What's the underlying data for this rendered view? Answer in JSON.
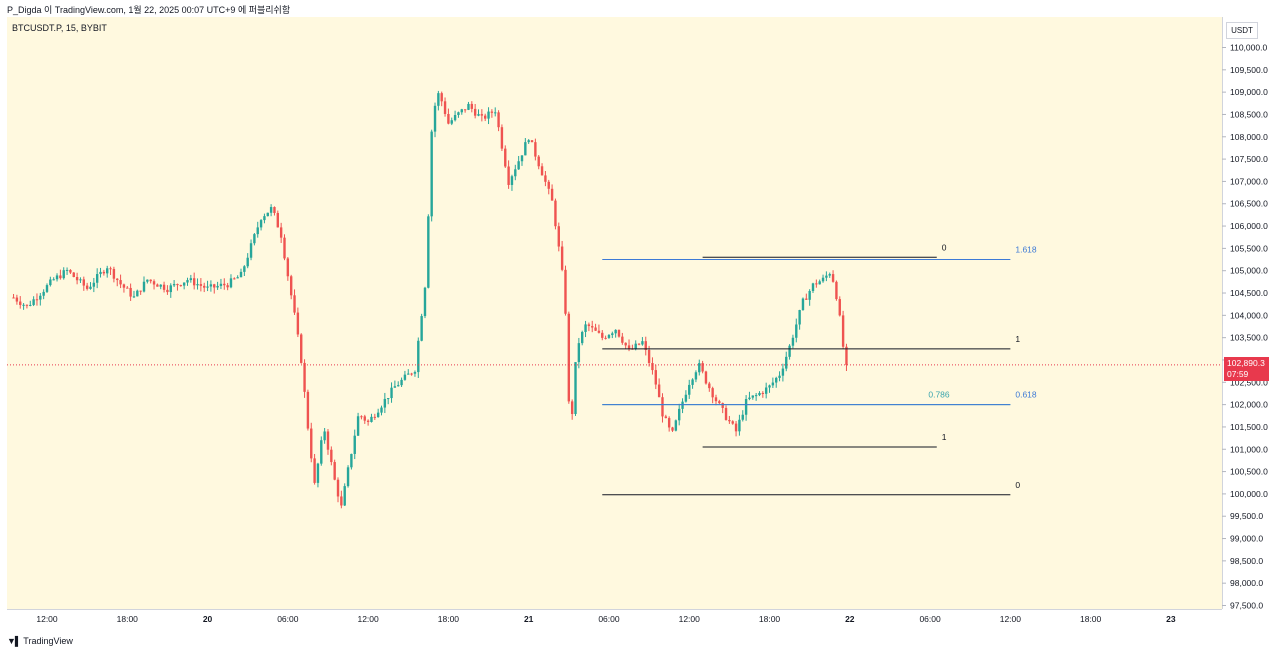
{
  "header": {
    "caption": "P_Digda 이 TradingView.com, 1월 22, 2025 00:07 UTC+9 에 퍼블리쉬함"
  },
  "legend": {
    "symbol": "BTCUSDT.P, 15, BYBIT"
  },
  "axis": {
    "unit": "USDT"
  },
  "footer": {
    "brand": "TradingView",
    "logo": "tradingview-logo-icon"
  },
  "price_tag": {
    "price": "102,890.3",
    "countdown": "07:59"
  },
  "colors": {
    "up": "#26a69a",
    "down": "#ef5350",
    "background": "#fff9df",
    "fib_blue": "#3d7ad6",
    "fib_teal": "#3aa5ad",
    "fib_black": "#131722",
    "last_price": "#e8394d"
  },
  "chart_data": {
    "type": "candlestick",
    "y_axis": {
      "min": 97500,
      "max": 110000,
      "ticks": [
        "110,000.0",
        "109,500.0",
        "109,000.0",
        "108,500.0",
        "108,000.0",
        "107,500.0",
        "107,000.0",
        "106,500.0",
        "106,000.0",
        "105,500.0",
        "105,000.0",
        "104,500.0",
        "104,000.0",
        "103,500.0",
        "103,000.0",
        "102,500.0",
        "102,000.0",
        "101,500.0",
        "101,000.0",
        "100,500.0",
        "100,000.0",
        "99,500.0",
        "99,000.0",
        "98,500.0",
        "98,000.0",
        "97,500.0"
      ]
    },
    "x_axis": {
      "ticks": [
        {
          "label": "12:00",
          "hours": 12,
          "bold": false
        },
        {
          "label": "18:00",
          "hours": 18,
          "bold": false
        },
        {
          "label": "20",
          "hours": 24,
          "bold": true
        },
        {
          "label": "06:00",
          "hours": 30,
          "bold": false
        },
        {
          "label": "12:00",
          "hours": 36,
          "bold": false
        },
        {
          "label": "18:00",
          "hours": 42,
          "bold": false
        },
        {
          "label": "21",
          "hours": 48,
          "bold": true
        },
        {
          "label": "06:00",
          "hours": 54,
          "bold": false
        },
        {
          "label": "12:00",
          "hours": 60,
          "bold": false
        },
        {
          "label": "18:00",
          "hours": 66,
          "bold": false
        },
        {
          "label": "22",
          "hours": 72,
          "bold": true
        },
        {
          "label": "06:00",
          "hours": 78,
          "bold": false
        },
        {
          "label": "12:00",
          "hours": 84,
          "bold": false
        },
        {
          "label": "18:00",
          "hours": 90,
          "bold": false
        },
        {
          "label": "23",
          "hours": 96,
          "bold": true
        }
      ]
    },
    "last_price": 102890.3,
    "price_waypoints": [
      [
        9.5,
        104400
      ],
      [
        10.5,
        104200
      ],
      [
        11.5,
        104500
      ],
      [
        12.5,
        104800
      ],
      [
        13.5,
        105000
      ],
      [
        15,
        104600
      ],
      [
        16.5,
        105100
      ],
      [
        17.5,
        104700
      ],
      [
        18.5,
        104400
      ],
      [
        19.5,
        104800
      ],
      [
        21,
        104600
      ],
      [
        22.5,
        104800
      ],
      [
        24,
        104600
      ],
      [
        25.5,
        104700
      ],
      [
        26.5,
        104900
      ],
      [
        28,
        106200
      ],
      [
        28.8,
        106400
      ],
      [
        29.5,
        105800
      ],
      [
        30.5,
        104000
      ],
      [
        31,
        103000
      ],
      [
        31.5,
        101500
      ],
      [
        32,
        100200
      ],
      [
        32.7,
        101500
      ],
      [
        33.5,
        100300
      ],
      [
        34,
        99700
      ],
      [
        34.6,
        100700
      ],
      [
        35.3,
        101800
      ],
      [
        36,
        101600
      ],
      [
        37,
        102000
      ],
      [
        38,
        102400
      ],
      [
        39.5,
        102800
      ],
      [
        40.3,
        104800
      ],
      [
        40.8,
        108500
      ],
      [
        41.3,
        109000
      ],
      [
        42,
        108300
      ],
      [
        42.7,
        108500
      ],
      [
        43.5,
        108700
      ],
      [
        44.5,
        108400
      ],
      [
        45.5,
        108600
      ],
      [
        46.5,
        107000
      ],
      [
        47.3,
        107500
      ],
      [
        48,
        108000
      ],
      [
        49,
        107200
      ],
      [
        49.8,
        106500
      ],
      [
        50.7,
        104500
      ],
      [
        51.1,
        101200
      ],
      [
        51.6,
        103300
      ],
      [
        52.3,
        103800
      ],
      [
        53.5,
        103500
      ],
      [
        54.5,
        103700
      ],
      [
        55.5,
        103200
      ],
      [
        56.5,
        103400
      ],
      [
        57.4,
        102600
      ],
      [
        58,
        101800
      ],
      [
        58.7,
        101300
      ],
      [
        59.3,
        101900
      ],
      [
        60,
        102500
      ],
      [
        60.7,
        102900
      ],
      [
        61.3,
        102500
      ],
      [
        62,
        102100
      ],
      [
        62.8,
        101700
      ],
      [
        63.5,
        101400
      ],
      [
        64.3,
        102100
      ],
      [
        65,
        102200
      ],
      [
        66,
        102400
      ],
      [
        66.8,
        102700
      ],
      [
        67.5,
        103300
      ],
      [
        68.5,
        104300
      ],
      [
        69.3,
        104700
      ],
      [
        70,
        104800
      ],
      [
        70.6,
        105000
      ],
      [
        71.1,
        104300
      ],
      [
        71.5,
        103300
      ],
      [
        71.9,
        102890
      ]
    ],
    "fib_levels": [
      {
        "label": "0",
        "price": 105300,
        "start": 61,
        "end": 78.5,
        "color": "fib_black",
        "label_pos": "right"
      },
      {
        "label": "1.618",
        "price": 105250,
        "start": 53.5,
        "end": 84,
        "color": "fib_blue",
        "label_pos": "right"
      },
      {
        "label": "1",
        "price": 103250,
        "start": 53.5,
        "end": 84,
        "color": "fib_black",
        "label_pos": "right"
      },
      {
        "label": "0.786",
        "price": 102000,
        "start": 53.5,
        "end": 84,
        "color": "fib_teal",
        "label_pos": "inside"
      },
      {
        "label": "0.618",
        "price": 102000,
        "start": 53.5,
        "end": 84,
        "color": "fib_blue",
        "label_pos": "right"
      },
      {
        "label": "1",
        "price": 101050,
        "start": 61,
        "end": 78.5,
        "color": "fib_black",
        "label_pos": "right"
      },
      {
        "label": "0",
        "price": 99980,
        "start": 53.5,
        "end": 84,
        "color": "fib_black",
        "label_pos": "right"
      }
    ]
  }
}
